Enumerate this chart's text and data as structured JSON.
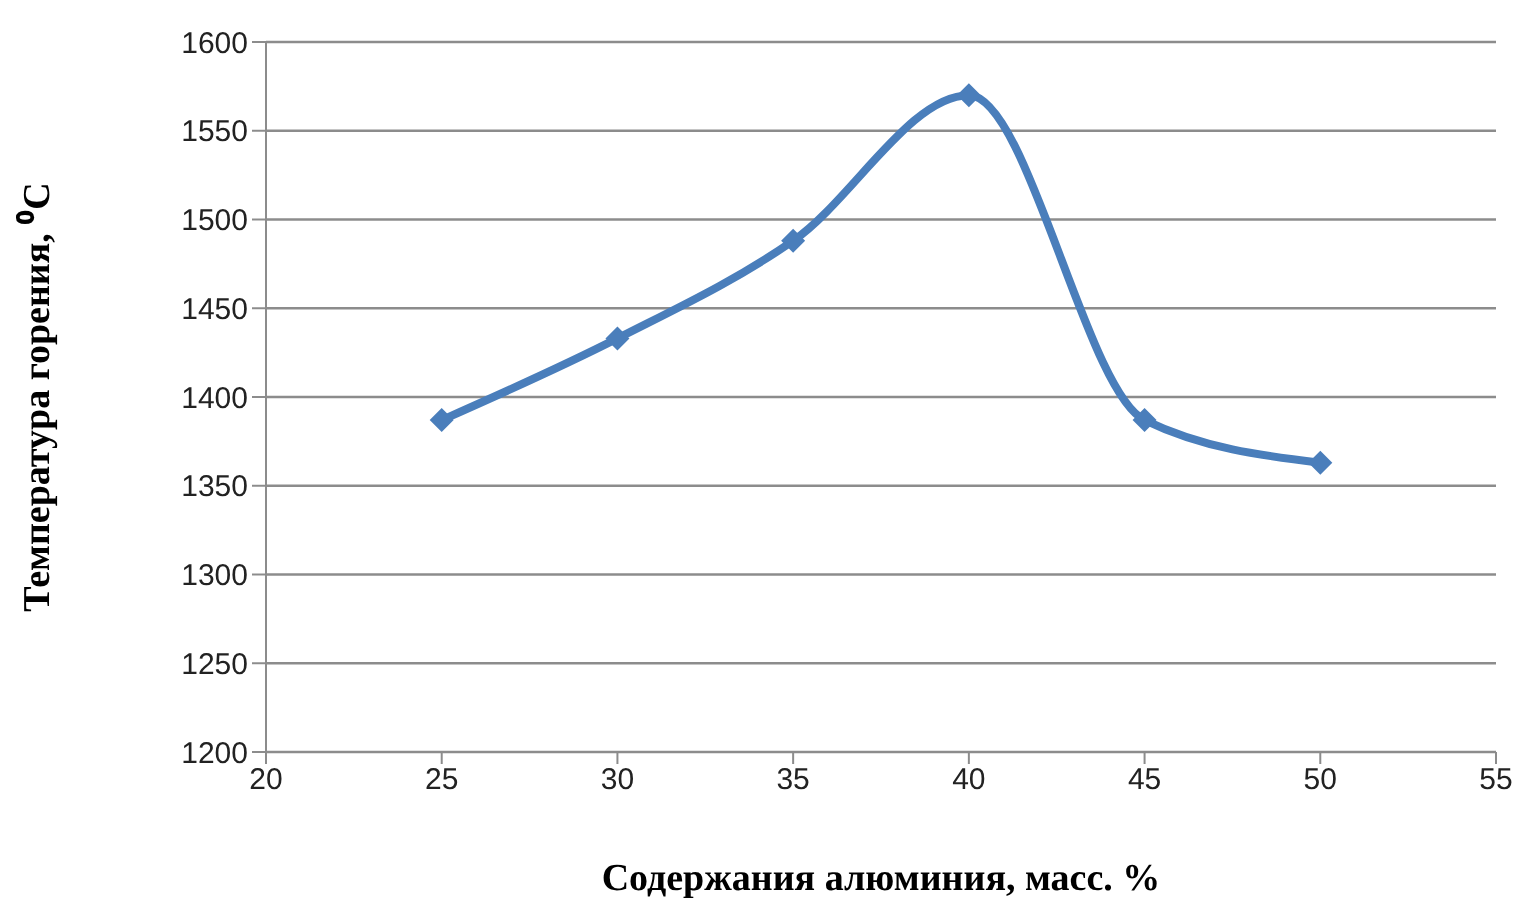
{
  "chart_data": {
    "type": "line",
    "xlabel": "Содержания алюминия, масс. %",
    "ylabel": "Температура горения, ⁰C",
    "x": [
      25,
      30,
      35,
      40,
      45,
      50
    ],
    "series": [
      {
        "color": "#4a7ebb",
        "values": [
          1387,
          1433,
          1488,
          1570,
          1387,
          1363
        ]
      }
    ],
    "xlim": [
      20,
      55
    ],
    "xticks": [
      20,
      25,
      30,
      35,
      40,
      45,
      50,
      55
    ],
    "ylim": [
      1200,
      1600
    ],
    "yticks": [
      1200,
      1250,
      1300,
      1350,
      1400,
      1450,
      1500,
      1550,
      1600
    ],
    "grid": "y",
    "marker": "diamond",
    "line_style": "solid",
    "legend": false
  }
}
